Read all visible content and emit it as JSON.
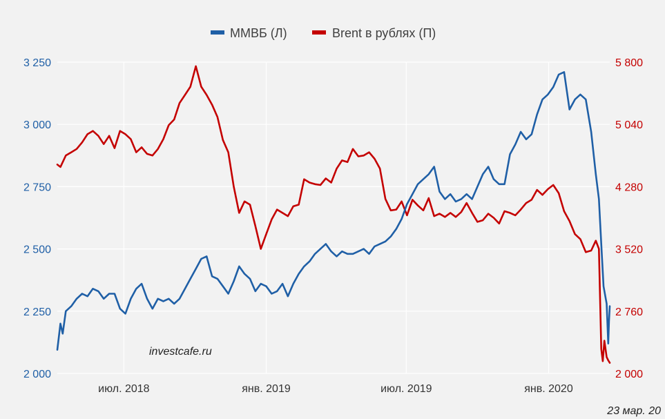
{
  "chart_data": {
    "type": "line",
    "grid": true,
    "legend_placement": "top-center",
    "x_tick_labels": [
      "июл. 2018",
      "янв. 2019",
      "июл. 2019",
      "янв. 2020"
    ],
    "x_tick_dates": [
      "2018-07-01",
      "2019-01-01",
      "2019-07-01",
      "2020-01-01"
    ],
    "x_range": [
      "2018-04-06",
      "2020-03-20"
    ],
    "left_axis": {
      "ylim": [
        2000,
        3250
      ],
      "ticks": [
        2000,
        2250,
        2500,
        2750,
        3000,
        3250
      ],
      "tick_labels": [
        "2 000",
        "2 250",
        "2 500",
        "2 750",
        "3 000",
        "3 250"
      ],
      "color": "#1f5fa6"
    },
    "right_axis": {
      "ylim": [
        2000,
        5800
      ],
      "ticks": [
        2000,
        2760,
        3520,
        4280,
        5040,
        5800
      ],
      "tick_labels": [
        "2 000",
        "2 760",
        "3 520",
        "4 280",
        "5 040",
        "5 800"
      ],
      "color": "#c40000"
    },
    "series": [
      {
        "name": "ММВБ (Л)",
        "axis": "left",
        "color": "#1f5fa6",
        "points": [
          [
            "2018-04-06",
            2095
          ],
          [
            "2018-04-10",
            2200
          ],
          [
            "2018-04-13",
            2160
          ],
          [
            "2018-04-17",
            2250
          ],
          [
            "2018-04-24",
            2270
          ],
          [
            "2018-05-01",
            2300
          ],
          [
            "2018-05-08",
            2320
          ],
          [
            "2018-05-15",
            2310
          ],
          [
            "2018-05-22",
            2340
          ],
          [
            "2018-05-29",
            2330
          ],
          [
            "2018-06-05",
            2300
          ],
          [
            "2018-06-12",
            2320
          ],
          [
            "2018-06-19",
            2320
          ],
          [
            "2018-06-26",
            2260
          ],
          [
            "2018-07-03",
            2240
          ],
          [
            "2018-07-10",
            2300
          ],
          [
            "2018-07-17",
            2340
          ],
          [
            "2018-07-24",
            2360
          ],
          [
            "2018-07-31",
            2300
          ],
          [
            "2018-08-07",
            2260
          ],
          [
            "2018-08-14",
            2300
          ],
          [
            "2018-08-21",
            2290
          ],
          [
            "2018-08-28",
            2300
          ],
          [
            "2018-09-04",
            2280
          ],
          [
            "2018-09-11",
            2300
          ],
          [
            "2018-09-18",
            2340
          ],
          [
            "2018-09-25",
            2380
          ],
          [
            "2018-10-02",
            2420
          ],
          [
            "2018-10-09",
            2460
          ],
          [
            "2018-10-16",
            2470
          ],
          [
            "2018-10-23",
            2390
          ],
          [
            "2018-10-30",
            2380
          ],
          [
            "2018-11-06",
            2350
          ],
          [
            "2018-11-13",
            2320
          ],
          [
            "2018-11-20",
            2370
          ],
          [
            "2018-11-27",
            2430
          ],
          [
            "2018-12-04",
            2400
          ],
          [
            "2018-12-11",
            2380
          ],
          [
            "2018-12-18",
            2330
          ],
          [
            "2018-12-25",
            2360
          ],
          [
            "2019-01-01",
            2350
          ],
          [
            "2019-01-08",
            2320
          ],
          [
            "2019-01-15",
            2330
          ],
          [
            "2019-01-22",
            2360
          ],
          [
            "2019-01-29",
            2310
          ],
          [
            "2019-02-05",
            2360
          ],
          [
            "2019-02-12",
            2400
          ],
          [
            "2019-02-19",
            2430
          ],
          [
            "2019-02-26",
            2450
          ],
          [
            "2019-03-05",
            2480
          ],
          [
            "2019-03-12",
            2500
          ],
          [
            "2019-03-19",
            2520
          ],
          [
            "2019-03-26",
            2490
          ],
          [
            "2019-04-02",
            2470
          ],
          [
            "2019-04-09",
            2490
          ],
          [
            "2019-04-16",
            2480
          ],
          [
            "2019-04-23",
            2480
          ],
          [
            "2019-04-30",
            2490
          ],
          [
            "2019-05-07",
            2500
          ],
          [
            "2019-05-14",
            2480
          ],
          [
            "2019-05-21",
            2510
          ],
          [
            "2019-05-28",
            2520
          ],
          [
            "2019-06-04",
            2530
          ],
          [
            "2019-06-11",
            2550
          ],
          [
            "2019-06-18",
            2580
          ],
          [
            "2019-06-25",
            2620
          ],
          [
            "2019-07-02",
            2680
          ],
          [
            "2019-07-09",
            2720
          ],
          [
            "2019-07-16",
            2760
          ],
          [
            "2019-07-23",
            2780
          ],
          [
            "2019-07-30",
            2800
          ],
          [
            "2019-08-06",
            2830
          ],
          [
            "2019-08-13",
            2730
          ],
          [
            "2019-08-20",
            2700
          ],
          [
            "2019-08-27",
            2720
          ],
          [
            "2019-09-03",
            2690
          ],
          [
            "2019-09-10",
            2700
          ],
          [
            "2019-09-17",
            2720
          ],
          [
            "2019-09-24",
            2700
          ],
          [
            "2019-10-01",
            2750
          ],
          [
            "2019-10-08",
            2800
          ],
          [
            "2019-10-15",
            2830
          ],
          [
            "2019-10-22",
            2780
          ],
          [
            "2019-10-29",
            2760
          ],
          [
            "2019-11-05",
            2760
          ],
          [
            "2019-11-12",
            2880
          ],
          [
            "2019-11-19",
            2920
          ],
          [
            "2019-11-26",
            2970
          ],
          [
            "2019-12-03",
            2940
          ],
          [
            "2019-12-10",
            2960
          ],
          [
            "2019-12-17",
            3040
          ],
          [
            "2019-12-24",
            3100
          ],
          [
            "2019-12-31",
            3120
          ],
          [
            "2020-01-07",
            3150
          ],
          [
            "2020-01-14",
            3200
          ],
          [
            "2020-01-21",
            3210
          ],
          [
            "2020-01-28",
            3060
          ],
          [
            "2020-02-04",
            3100
          ],
          [
            "2020-02-11",
            3120
          ],
          [
            "2020-02-18",
            3100
          ],
          [
            "2020-02-25",
            2970
          ],
          [
            "2020-03-02",
            2800
          ],
          [
            "2020-03-06",
            2700
          ],
          [
            "2020-03-09",
            2520
          ],
          [
            "2020-03-12",
            2350
          ],
          [
            "2020-03-16",
            2280
          ],
          [
            "2020-03-18",
            2120
          ],
          [
            "2020-03-19",
            2210
          ],
          [
            "2020-03-20",
            2270
          ]
        ]
      },
      {
        "name": "Brent в рублях (П)",
        "axis": "right",
        "color": "#c40000",
        "points": [
          [
            "2018-04-06",
            4550
          ],
          [
            "2018-04-10",
            4520
          ],
          [
            "2018-04-17",
            4660
          ],
          [
            "2018-04-24",
            4700
          ],
          [
            "2018-05-01",
            4740
          ],
          [
            "2018-05-08",
            4820
          ],
          [
            "2018-05-15",
            4920
          ],
          [
            "2018-05-22",
            4960
          ],
          [
            "2018-05-29",
            4900
          ],
          [
            "2018-06-05",
            4800
          ],
          [
            "2018-06-12",
            4900
          ],
          [
            "2018-06-19",
            4750
          ],
          [
            "2018-06-26",
            4960
          ],
          [
            "2018-07-03",
            4920
          ],
          [
            "2018-07-10",
            4860
          ],
          [
            "2018-07-17",
            4700
          ],
          [
            "2018-07-24",
            4760
          ],
          [
            "2018-07-31",
            4680
          ],
          [
            "2018-08-07",
            4660
          ],
          [
            "2018-08-14",
            4740
          ],
          [
            "2018-08-21",
            4860
          ],
          [
            "2018-08-28",
            5030
          ],
          [
            "2018-09-04",
            5100
          ],
          [
            "2018-09-11",
            5300
          ],
          [
            "2018-09-18",
            5400
          ],
          [
            "2018-09-25",
            5500
          ],
          [
            "2018-10-02",
            5750
          ],
          [
            "2018-10-09",
            5500
          ],
          [
            "2018-10-16",
            5400
          ],
          [
            "2018-10-23",
            5280
          ],
          [
            "2018-10-30",
            5130
          ],
          [
            "2018-11-06",
            4850
          ],
          [
            "2018-11-13",
            4700
          ],
          [
            "2018-11-20",
            4280
          ],
          [
            "2018-11-27",
            3960
          ],
          [
            "2018-12-04",
            4100
          ],
          [
            "2018-12-11",
            4060
          ],
          [
            "2018-12-18",
            3800
          ],
          [
            "2018-12-25",
            3520
          ],
          [
            "2019-01-01",
            3700
          ],
          [
            "2019-01-08",
            3880
          ],
          [
            "2019-01-15",
            4000
          ],
          [
            "2019-01-22",
            3960
          ],
          [
            "2019-01-29",
            3920
          ],
          [
            "2019-02-05",
            4040
          ],
          [
            "2019-02-12",
            4060
          ],
          [
            "2019-02-19",
            4370
          ],
          [
            "2019-02-26",
            4330
          ],
          [
            "2019-03-05",
            4310
          ],
          [
            "2019-03-12",
            4300
          ],
          [
            "2019-03-19",
            4380
          ],
          [
            "2019-03-26",
            4330
          ],
          [
            "2019-04-02",
            4500
          ],
          [
            "2019-04-09",
            4600
          ],
          [
            "2019-04-16",
            4580
          ],
          [
            "2019-04-23",
            4740
          ],
          [
            "2019-04-30",
            4650
          ],
          [
            "2019-05-07",
            4660
          ],
          [
            "2019-05-14",
            4700
          ],
          [
            "2019-05-21",
            4620
          ],
          [
            "2019-05-28",
            4500
          ],
          [
            "2019-06-04",
            4130
          ],
          [
            "2019-06-11",
            3990
          ],
          [
            "2019-06-18",
            4000
          ],
          [
            "2019-06-25",
            4100
          ],
          [
            "2019-07-02",
            3930
          ],
          [
            "2019-07-09",
            4120
          ],
          [
            "2019-07-16",
            4050
          ],
          [
            "2019-07-23",
            3990
          ],
          [
            "2019-07-30",
            4140
          ],
          [
            "2019-08-06",
            3920
          ],
          [
            "2019-08-13",
            3950
          ],
          [
            "2019-08-20",
            3910
          ],
          [
            "2019-08-27",
            3960
          ],
          [
            "2019-09-03",
            3910
          ],
          [
            "2019-09-10",
            3970
          ],
          [
            "2019-09-17",
            4080
          ],
          [
            "2019-09-24",
            3960
          ],
          [
            "2019-10-01",
            3850
          ],
          [
            "2019-10-08",
            3870
          ],
          [
            "2019-10-15",
            3950
          ],
          [
            "2019-10-22",
            3900
          ],
          [
            "2019-10-29",
            3830
          ],
          [
            "2019-11-05",
            3980
          ],
          [
            "2019-11-12",
            3960
          ],
          [
            "2019-11-19",
            3930
          ],
          [
            "2019-11-26",
            4000
          ],
          [
            "2019-12-03",
            4080
          ],
          [
            "2019-12-10",
            4120
          ],
          [
            "2019-12-17",
            4240
          ],
          [
            "2019-12-24",
            4180
          ],
          [
            "2019-12-31",
            4250
          ],
          [
            "2020-01-07",
            4300
          ],
          [
            "2020-01-14",
            4200
          ],
          [
            "2020-01-21",
            3980
          ],
          [
            "2020-01-28",
            3860
          ],
          [
            "2020-02-04",
            3700
          ],
          [
            "2020-02-11",
            3640
          ],
          [
            "2020-02-18",
            3480
          ],
          [
            "2020-02-25",
            3500
          ],
          [
            "2020-03-02",
            3620
          ],
          [
            "2020-03-06",
            3520
          ],
          [
            "2020-03-09",
            2300
          ],
          [
            "2020-03-11",
            2150
          ],
          [
            "2020-03-13",
            2400
          ],
          [
            "2020-03-16",
            2200
          ],
          [
            "2020-03-18",
            2160
          ],
          [
            "2020-03-20",
            2130
          ]
        ]
      }
    ]
  },
  "watermark": "investcafe.ru",
  "date_note": "23 мар. 20"
}
